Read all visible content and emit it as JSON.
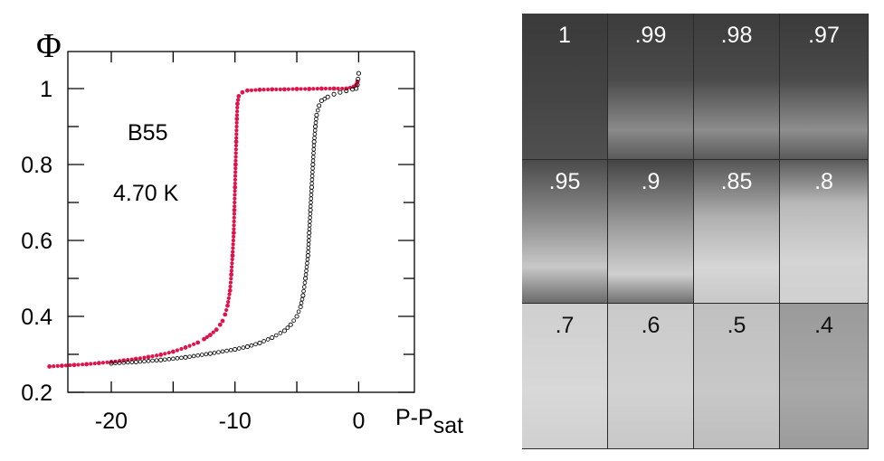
{
  "chart_data": {
    "type": "scatter",
    "title_symbol": "Φ",
    "ylabel": "Φ",
    "xlabel_main": "P-P",
    "xlabel_sub": "sat",
    "xlim": [
      -25,
      5
    ],
    "ylim": [
      0.2,
      1.05
    ],
    "xticks": [
      -20,
      -10,
      0
    ],
    "xtick_labels": [
      "-20",
      "-10",
      "0"
    ],
    "yticks": [
      0.2,
      0.4,
      0.6,
      0.8,
      1.0
    ],
    "ytick_labels": [
      "0.2",
      "0.4",
      "0.6",
      "0.8",
      "1"
    ],
    "annotations": [
      "B55",
      "4.70 K"
    ],
    "series": [
      {
        "name": "red",
        "color": "#e0134a",
        "marker": "filled",
        "points": [
          [
            -25.0,
            0.268
          ],
          [
            -24.0,
            0.27
          ],
          [
            -23.0,
            0.272
          ],
          [
            -22.0,
            0.274
          ],
          [
            -21.0,
            0.277
          ],
          [
            -20.0,
            0.28
          ],
          [
            -19.0,
            0.284
          ],
          [
            -18.0,
            0.288
          ],
          [
            -17.0,
            0.293
          ],
          [
            -16.0,
            0.299
          ],
          [
            -15.0,
            0.307
          ],
          [
            -14.0,
            0.318
          ],
          [
            -13.0,
            0.331
          ],
          [
            -12.5,
            0.34
          ],
          [
            -12.0,
            0.351
          ],
          [
            -11.5,
            0.365
          ],
          [
            -11.2,
            0.378
          ],
          [
            -11.0,
            0.388
          ],
          [
            -10.8,
            0.405
          ],
          [
            -10.6,
            0.428
          ],
          [
            -10.4,
            0.468
          ],
          [
            -10.3,
            0.51
          ],
          [
            -10.2,
            0.56
          ],
          [
            -10.1,
            0.62
          ],
          [
            -10.05,
            0.68
          ],
          [
            -10.0,
            0.74
          ],
          [
            -9.95,
            0.8
          ],
          [
            -9.9,
            0.86
          ],
          [
            -9.85,
            0.92
          ],
          [
            -9.8,
            0.96
          ],
          [
            -9.7,
            0.98
          ],
          [
            -9.4,
            0.99
          ],
          [
            -9.0,
            0.995
          ],
          [
            -8.0,
            0.997
          ],
          [
            -7.0,
            0.998
          ],
          [
            -6.0,
            0.998
          ],
          [
            -5.0,
            0.999
          ],
          [
            -4.0,
            0.999
          ],
          [
            -3.0,
            1.0
          ],
          [
            -2.0,
            1.0
          ],
          [
            -1.0,
            1.0
          ],
          [
            -0.4,
            1.005
          ],
          [
            -0.2,
            1.01
          ],
          [
            -0.1,
            1.018
          ]
        ]
      },
      {
        "name": "black",
        "color": "#000000",
        "marker": "open",
        "points": [
          [
            -20.0,
            0.276
          ],
          [
            -18.0,
            0.28
          ],
          [
            -16.0,
            0.285
          ],
          [
            -14.0,
            0.292
          ],
          [
            -12.0,
            0.302
          ],
          [
            -10.0,
            0.313
          ],
          [
            -9.0,
            0.32
          ],
          [
            -8.0,
            0.33
          ],
          [
            -7.0,
            0.344
          ],
          [
            -6.0,
            0.362
          ],
          [
            -5.5,
            0.378
          ],
          [
            -5.0,
            0.4
          ],
          [
            -4.7,
            0.425
          ],
          [
            -4.5,
            0.455
          ],
          [
            -4.3,
            0.5
          ],
          [
            -4.1,
            0.56
          ],
          [
            -4.0,
            0.62
          ],
          [
            -3.9,
            0.68
          ],
          [
            -3.8,
            0.74
          ],
          [
            -3.7,
            0.8
          ],
          [
            -3.6,
            0.86
          ],
          [
            -3.5,
            0.9
          ],
          [
            -3.4,
            0.93
          ],
          [
            -3.2,
            0.955
          ],
          [
            -3.0,
            0.968
          ],
          [
            -2.5,
            0.978
          ],
          [
            -2.0,
            0.985
          ],
          [
            -1.5,
            0.99
          ],
          [
            -1.0,
            0.994
          ],
          [
            -0.5,
            0.998
          ],
          [
            -0.2,
            1.0
          ],
          [
            -0.1,
            1.01
          ],
          [
            -0.05,
            1.025
          ],
          [
            0.0,
            1.04
          ]
        ]
      }
    ]
  },
  "photo_labels": [
    "1",
    ".99",
    ".98",
    ".97",
    ".95",
    ".9",
    ".85",
    ".8",
    ".7",
    ".6",
    ".5",
    ".4"
  ]
}
